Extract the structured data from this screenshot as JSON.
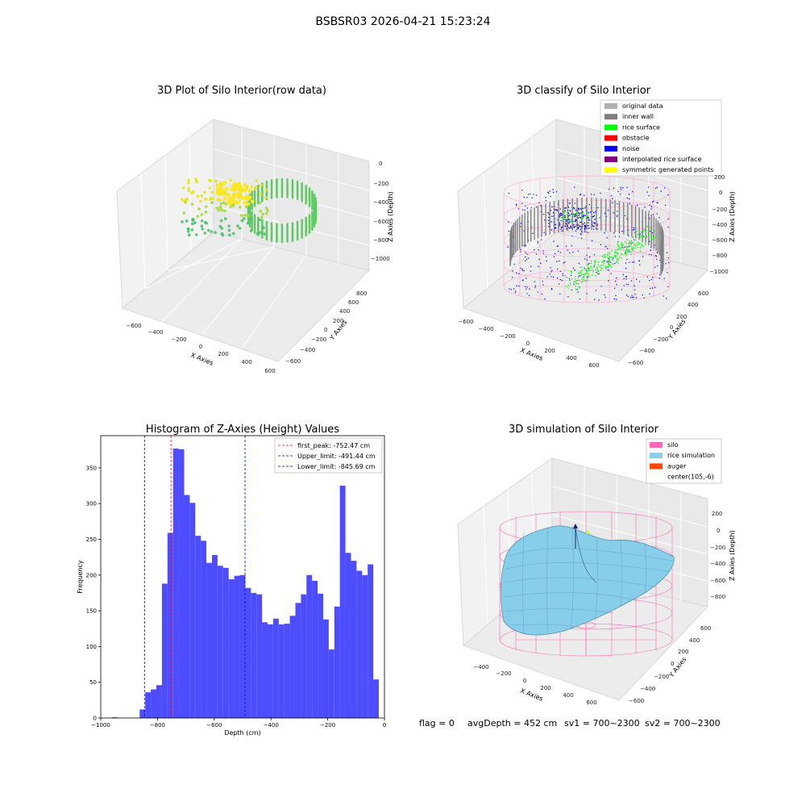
{
  "figure_title": "BSBSR03 2026-04-21 15:23:24",
  "chart_data": [
    {
      "type": "scatter",
      "title": "3D Plot of Silo Interior(row data)",
      "xlabel": "X Axies",
      "ylabel": "Y Axies",
      "zlabel": "Z Axies (Depth)",
      "x_ticks": [
        "−600",
        "−400",
        "−200",
        "0",
        "200",
        "400",
        "600"
      ],
      "y_ticks": [
        "−600",
        "−400",
        "−200",
        "0",
        "200",
        "400",
        "600",
        "800"
      ],
      "z_ticks": [
        "0",
        "−200",
        "−400",
        "−600",
        "−800",
        "−1000"
      ],
      "grid": true,
      "colormap": "viridis"
    },
    {
      "type": "scatter",
      "title": "3D classify of Silo Interior",
      "xlabel": "X Axies",
      "ylabel": "Y Axies",
      "zlabel": "Z Axies (Depth)",
      "x_ticks": [
        "−600",
        "−400",
        "−200",
        "0",
        "200",
        "400",
        "600"
      ],
      "y_ticks": [
        "−600",
        "−400",
        "−200",
        "0",
        "200",
        "400",
        "600"
      ],
      "z_ticks": [
        "200",
        "0",
        "−200",
        "−400",
        "−600",
        "−800",
        "−1000"
      ],
      "legend_position": "top-right",
      "legend": [
        {
          "label": "original data",
          "color": "#b0b0b0"
        },
        {
          "label": "inner wall",
          "color": "#808080"
        },
        {
          "label": "rice surface",
          "color": "#00ff00"
        },
        {
          "label": "obstacle",
          "color": "#ff0000"
        },
        {
          "label": "noise",
          "color": "#0000ff"
        },
        {
          "label": "interpolated rice surface",
          "color": "#800080"
        },
        {
          "label": "symmetric generated points",
          "color": "#ffff00"
        }
      ]
    },
    {
      "type": "bar",
      "title": "Histogram of Z-Axies (Height) Values",
      "xlabel": "Depth (cm)",
      "ylabel": "Frequency",
      "xlim": [
        -1000,
        0
      ],
      "ylim": [
        0,
        395
      ],
      "x_ticks": [
        -1000,
        -800,
        -600,
        -400,
        -200,
        0
      ],
      "x_tick_labels": [
        "−1000",
        "−800",
        "−600",
        "−400",
        "−200",
        "0"
      ],
      "y_ticks": [
        0,
        50,
        100,
        150,
        200,
        250,
        300,
        350
      ],
      "bar_color": "#4d4dff",
      "bins": [
        {
          "x0": -1000.0,
          "x1": -980.4,
          "value": 0
        },
        {
          "x0": -980.4,
          "x1": -960.8,
          "value": 0
        },
        {
          "x0": -960.8,
          "x1": -941.2,
          "value": 1
        },
        {
          "x0": -941.2,
          "x1": -921.6,
          "value": 0
        },
        {
          "x0": -921.6,
          "x1": -902.0,
          "value": 0
        },
        {
          "x0": -902.0,
          "x1": -882.4,
          "value": 0
        },
        {
          "x0": -882.4,
          "x1": -862.8,
          "value": 0
        },
        {
          "x0": -862.8,
          "x1": -843.2,
          "value": 12
        },
        {
          "x0": -843.2,
          "x1": -823.6,
          "value": 36
        },
        {
          "x0": -823.6,
          "x1": -804.0,
          "value": 40
        },
        {
          "x0": -804.0,
          "x1": -784.4,
          "value": 46
        },
        {
          "x0": -784.4,
          "x1": -764.8,
          "value": 188
        },
        {
          "x0": -764.8,
          "x1": -745.2,
          "value": 259
        },
        {
          "x0": -745.2,
          "x1": -725.6,
          "value": 377
        },
        {
          "x0": -725.6,
          "x1": -706.0,
          "value": 376
        },
        {
          "x0": -706.0,
          "x1": -686.4,
          "value": 312
        },
        {
          "x0": -686.4,
          "x1": -666.8,
          "value": 301
        },
        {
          "x0": -666.8,
          "x1": -647.2,
          "value": 255
        },
        {
          "x0": -647.2,
          "x1": -627.6,
          "value": 248
        },
        {
          "x0": -627.6,
          "x1": -608.0,
          "value": 217
        },
        {
          "x0": -608.0,
          "x1": -588.4,
          "value": 228
        },
        {
          "x0": -588.4,
          "x1": -568.8,
          "value": 213
        },
        {
          "x0": -568.8,
          "x1": -549.2,
          "value": 210
        },
        {
          "x0": -549.2,
          "x1": -529.6,
          "value": 194
        },
        {
          "x0": -529.6,
          "x1": -510.0,
          "value": 199
        },
        {
          "x0": -510.0,
          "x1": -490.4,
          "value": 200
        },
        {
          "x0": -490.4,
          "x1": -470.8,
          "value": 182
        },
        {
          "x0": -470.8,
          "x1": -451.2,
          "value": 175
        },
        {
          "x0": -451.2,
          "x1": -431.6,
          "value": 173
        },
        {
          "x0": -431.6,
          "x1": -412.0,
          "value": 134
        },
        {
          "x0": -412.0,
          "x1": -392.4,
          "value": 131
        },
        {
          "x0": -392.4,
          "x1": -372.8,
          "value": 139
        },
        {
          "x0": -372.8,
          "x1": -353.2,
          "value": 131
        },
        {
          "x0": -353.2,
          "x1": -333.6,
          "value": 132
        },
        {
          "x0": -333.6,
          "x1": -314.0,
          "value": 143
        },
        {
          "x0": -314.0,
          "x1": -294.4,
          "value": 161
        },
        {
          "x0": -294.4,
          "x1": -274.8,
          "value": 173
        },
        {
          "x0": -274.8,
          "x1": -255.2,
          "value": 200
        },
        {
          "x0": -255.2,
          "x1": -235.6,
          "value": 192
        },
        {
          "x0": -235.6,
          "x1": -216.0,
          "value": 174
        },
        {
          "x0": -216.0,
          "x1": -196.4,
          "value": 138
        },
        {
          "x0": -196.4,
          "x1": -176.8,
          "value": 96
        },
        {
          "x0": -176.8,
          "x1": -157.2,
          "value": 156
        },
        {
          "x0": -157.2,
          "x1": -137.6,
          "value": 325
        },
        {
          "x0": -137.6,
          "x1": -118.0,
          "value": 231
        },
        {
          "x0": -118.0,
          "x1": -98.4,
          "value": 220
        },
        {
          "x0": -98.4,
          "x1": -78.8,
          "value": 206
        },
        {
          "x0": -78.8,
          "x1": -59.2,
          "value": 200
        },
        {
          "x0": -59.2,
          "x1": -39.6,
          "value": 215
        },
        {
          "x0": -39.6,
          "x1": -20.0,
          "value": 54
        }
      ],
      "vlines": [
        {
          "x": -752.47,
          "color": "#ff0000",
          "label": "first_peak: -752.47 cm"
        },
        {
          "x": -491.44,
          "color": "#0000cc",
          "label": "Upper_limit: -491.44 cm"
        },
        {
          "x": -845.69,
          "color": "#0000cc",
          "label": "Lower_limit: -845.69 cm"
        }
      ],
      "legend_position": "top-right"
    },
    {
      "type": "surface",
      "title": "3D simulation of Silo Interior",
      "xlabel": "X Axies",
      "ylabel": "Y Axies",
      "zlabel": "Z Axies (Depth)",
      "x_ticks": [
        "−400",
        "−200",
        "0",
        "200",
        "400",
        "600"
      ],
      "y_ticks": [
        "−600",
        "−400",
        "−200",
        "0",
        "200",
        "400",
        "600"
      ],
      "z_ticks": [
        "200",
        "0",
        "−200",
        "−400",
        "−600",
        "−800"
      ],
      "legend_position": "top-right",
      "legend": [
        {
          "label": "silo",
          "color": "#ff69b4"
        },
        {
          "label": "rice simulation",
          "color": "#87ceeb"
        },
        {
          "label": "auger",
          "color": "#ff4500"
        },
        {
          "label": "center(105,-6)",
          "color": ""
        }
      ]
    }
  ],
  "status": {
    "flag": "flag = 0",
    "avg_depth": "avgDepth = 452 cm",
    "sv1": "sv1 = 700~2300",
    "sv2": "sv2 = 700~2300"
  }
}
